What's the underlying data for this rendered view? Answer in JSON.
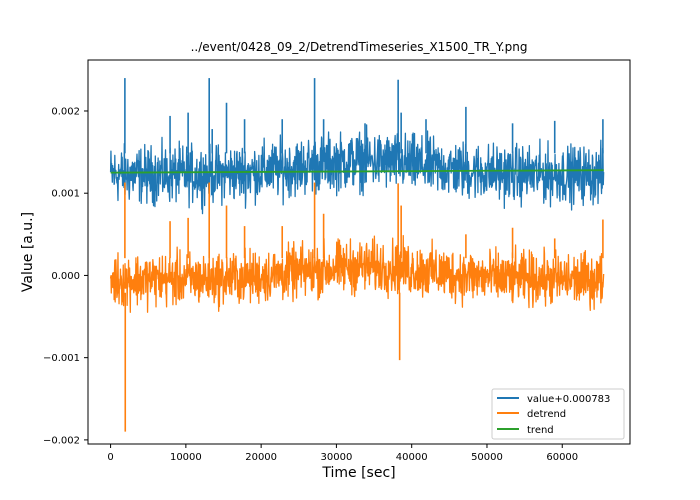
{
  "chart_data": {
    "type": "line",
    "title": "../event/0428_09_2/DetrendTimeseries_X1500_TR_Y.png",
    "xlabel": "Time [sec]",
    "ylabel": "Value [a.u.]",
    "xlim": [
      -3000,
      69000
    ],
    "ylim": [
      -0.00205,
      0.00262
    ],
    "x_ticks": [
      0,
      10000,
      20000,
      30000,
      40000,
      50000,
      60000
    ],
    "x_tick_labels": [
      "0",
      "10000",
      "20000",
      "30000",
      "40000",
      "50000",
      "60000"
    ],
    "y_ticks": [
      -0.002,
      -0.001,
      0.0,
      0.001,
      0.002
    ],
    "y_tick_labels": [
      "−0.002",
      "−0.001",
      "0.000",
      "0.001",
      "0.002"
    ],
    "grid": false,
    "legend_position": "lower-right",
    "x_range": [
      0,
      65500
    ],
    "series": [
      {
        "name": "value+0.000783",
        "color": "#1f77b4",
        "baseline": 0.00126,
        "noise_band": [
          0.00085,
          0.0016
        ],
        "spikes": [
          {
            "x": 1900,
            "y": 0.0024
          },
          {
            "x": 7900,
            "y": 0.00194
          },
          {
            "x": 10300,
            "y": 0.00198
          },
          {
            "x": 13100,
            "y": 0.0024
          },
          {
            "x": 13500,
            "y": 0.00178
          },
          {
            "x": 15400,
            "y": 0.0021
          },
          {
            "x": 17800,
            "y": 0.0019
          },
          {
            "x": 22800,
            "y": 0.0019
          },
          {
            "x": 27100,
            "y": 0.0024
          },
          {
            "x": 28300,
            "y": 0.0019
          },
          {
            "x": 33800,
            "y": 0.00185
          },
          {
            "x": 38200,
            "y": 0.00238
          },
          {
            "x": 38600,
            "y": 0.00198
          },
          {
            "x": 41900,
            "y": 0.0019
          },
          {
            "x": 47200,
            "y": 0.00205
          },
          {
            "x": 53400,
            "y": 0.00185
          },
          {
            "x": 59000,
            "y": 0.00188
          },
          {
            "x": 65400,
            "y": 0.0019
          }
        ]
      },
      {
        "name": "detrend",
        "color": "#ff7f0e",
        "baseline": 0.0,
        "noise_band": [
          -0.0004,
          0.0003
        ],
        "spikes": [
          {
            "x": 1900,
            "y": 0.00113
          },
          {
            "x": 1950,
            "y": -0.0019
          },
          {
            "x": 7900,
            "y": 0.00066
          },
          {
            "x": 10300,
            "y": 0.0007
          },
          {
            "x": 13100,
            "y": 0.00113
          },
          {
            "x": 15400,
            "y": 0.00085
          },
          {
            "x": 17800,
            "y": 0.0006
          },
          {
            "x": 22800,
            "y": 0.0006
          },
          {
            "x": 27100,
            "y": 0.00113
          },
          {
            "x": 28300,
            "y": 0.00075
          },
          {
            "x": 38200,
            "y": 0.00112
          },
          {
            "x": 38400,
            "y": -0.00103
          },
          {
            "x": 38600,
            "y": 0.00085
          },
          {
            "x": 47200,
            "y": 0.0005
          },
          {
            "x": 53400,
            "y": 0.00058
          },
          {
            "x": 59000,
            "y": 0.00045
          },
          {
            "x": 65400,
            "y": 0.00068
          }
        ]
      },
      {
        "name": "trend",
        "color": "#2ca02c",
        "x": [
          0,
          65500
        ],
        "y": [
          0.00125,
          0.00128
        ]
      }
    ]
  }
}
